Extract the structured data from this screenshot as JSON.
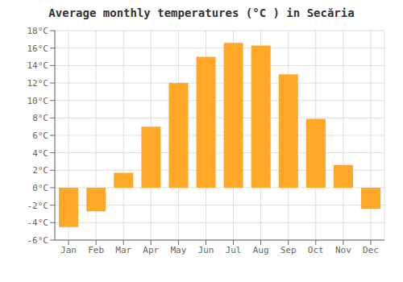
{
  "chart_data": {
    "type": "bar",
    "title": "Average monthly temperatures (°C ) in Secăria",
    "categories": [
      "Jan",
      "Feb",
      "Mar",
      "Apr",
      "May",
      "Jun",
      "Jul",
      "Aug",
      "Sep",
      "Oct",
      "Nov",
      "Dec"
    ],
    "values": [
      -4.5,
      -2.7,
      1.7,
      7.0,
      12.0,
      15.0,
      16.6,
      16.3,
      13.0,
      7.9,
      2.6,
      -2.4
    ],
    "color": "#FFA726",
    "ylim": [
      -6,
      18
    ],
    "yticks": [
      {
        "value": -6,
        "label": "-6°C"
      },
      {
        "value": -4,
        "label": "-4°C"
      },
      {
        "value": -2,
        "label": "-2°C"
      },
      {
        "value": 0,
        "label": "0°C"
      },
      {
        "value": 2,
        "label": "2°C"
      },
      {
        "value": 4,
        "label": "4°C"
      },
      {
        "value": 6,
        "label": "6°C"
      },
      {
        "value": 8,
        "label": "8°C"
      },
      {
        "value": 10,
        "label": "10°C"
      },
      {
        "value": 12,
        "label": "12°C"
      },
      {
        "value": 14,
        "label": "14°C"
      },
      {
        "value": 16,
        "label": "16°C"
      },
      {
        "value": 18,
        "label": "18°C"
      }
    ],
    "grid": true
  }
}
